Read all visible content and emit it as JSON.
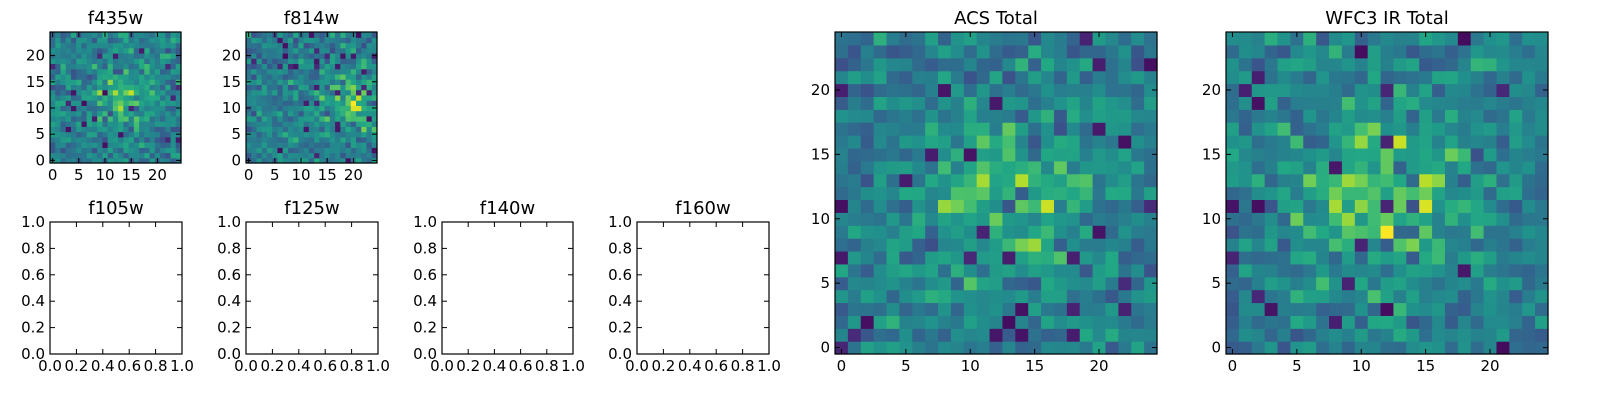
{
  "chart_data": [
    {
      "type": "heatmap",
      "title": "f435w",
      "xlim": [
        -0.5,
        24.5
      ],
      "ylim": [
        -0.5,
        24.5
      ],
      "xticks": [
        0,
        5,
        10,
        15,
        20
      ],
      "yticks": [
        0,
        5,
        10,
        15,
        20
      ],
      "grid_size": 25,
      "colormap": "viridis",
      "value_range": [
        0,
        1
      ],
      "seed": 11,
      "center": [
        13,
        12
      ],
      "strength": 0.22
    },
    {
      "type": "heatmap",
      "title": "f814w",
      "xlim": [
        -0.5,
        24.5
      ],
      "ylim": [
        -0.5,
        24.5
      ],
      "xticks": [
        0,
        5,
        10,
        15,
        20
      ],
      "yticks": [
        0,
        5,
        10,
        15,
        20
      ],
      "grid_size": 25,
      "colormap": "viridis",
      "value_range": [
        0,
        1
      ],
      "seed": 23,
      "center": [
        20,
        12
      ],
      "strength": 0.25
    },
    {
      "type": "empty",
      "title": "f105w",
      "xlim": [
        0,
        1
      ],
      "ylim": [
        0,
        1
      ],
      "xticks": [
        0.0,
        0.2,
        0.4,
        0.6,
        0.8,
        1.0
      ],
      "yticks": [
        0.0,
        0.2,
        0.4,
        0.6,
        0.8,
        1.0
      ]
    },
    {
      "type": "empty",
      "title": "f125w",
      "xlim": [
        0,
        1
      ],
      "ylim": [
        0,
        1
      ],
      "xticks": [
        0.0,
        0.2,
        0.4,
        0.6,
        0.8,
        1.0
      ],
      "yticks": [
        0.0,
        0.2,
        0.4,
        0.6,
        0.8,
        1.0
      ]
    },
    {
      "type": "empty",
      "title": "f140w",
      "xlim": [
        0,
        1
      ],
      "ylim": [
        0,
        1
      ],
      "xticks": [
        0.0,
        0.2,
        0.4,
        0.6,
        0.8,
        1.0
      ],
      "yticks": [
        0.0,
        0.2,
        0.4,
        0.6,
        0.8,
        1.0
      ]
    },
    {
      "type": "empty",
      "title": "f160w",
      "xlim": [
        0,
        1
      ],
      "ylim": [
        0,
        1
      ],
      "xticks": [
        0.0,
        0.2,
        0.4,
        0.6,
        0.8,
        1.0
      ],
      "yticks": [
        0.0,
        0.2,
        0.4,
        0.6,
        0.8,
        1.0
      ]
    },
    {
      "type": "heatmap",
      "title": "ACS Total",
      "xlim": [
        -0.5,
        24.5
      ],
      "ylim": [
        -0.5,
        24.5
      ],
      "xticks": [
        0,
        5,
        10,
        15,
        20
      ],
      "yticks": [
        0,
        5,
        10,
        15,
        20
      ],
      "grid_size": 25,
      "colormap": "viridis",
      "value_range": [
        0,
        1
      ],
      "seed": 37,
      "center": [
        13,
        12
      ],
      "strength": 0.25
    },
    {
      "type": "heatmap",
      "title": "WFC3 IR Total",
      "xlim": [
        -0.5,
        24.5
      ],
      "ylim": [
        -0.5,
        24.5
      ],
      "xticks": [
        0,
        5,
        10,
        15,
        20
      ],
      "yticks": [
        0,
        5,
        10,
        15,
        20
      ],
      "grid_size": 25,
      "colormap": "viridis",
      "value_range": [
        0,
        1
      ],
      "seed": 51,
      "center": [
        12,
        12
      ],
      "strength": 0.32
    }
  ]
}
